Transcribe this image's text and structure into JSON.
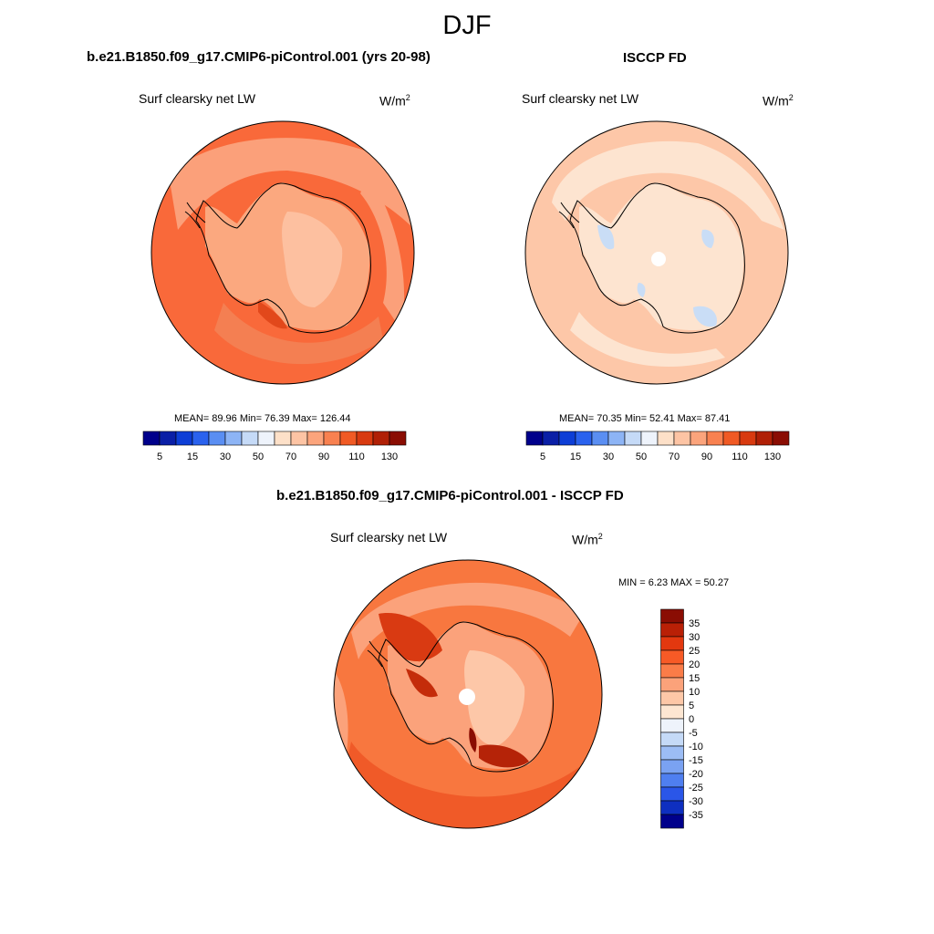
{
  "figure": {
    "title": "DJF"
  },
  "panels": [
    {
      "title": "b.e21.B1850.f09_g17.CMIP6-piControl.001 (yrs 20-98)",
      "subtitle": "Surf clearsky net LW",
      "units_base": "W/m",
      "units_exp": "2",
      "stats": "MEAN=  89.96  Min=  76.39  Max= 126.44"
    },
    {
      "title": "ISCCP FD",
      "subtitle": "Surf clearsky net LW",
      "units_base": "W/m",
      "units_exp": "2",
      "stats": "MEAN=  70.35  Min=  52.41  Max=  87.41"
    },
    {
      "title": "b.e21.B1850.f09_g17.CMIP6-piControl.001 - ISCCP FD",
      "subtitle": "Surf clearsky net LW",
      "units_base": "W/m",
      "units_exp": "2",
      "stats": "MIN =   6.23 MAX =  50.27"
    }
  ],
  "colorbars": {
    "absolute": {
      "ticks": [
        "5",
        "15",
        "30",
        "50",
        "70",
        "90",
        "110",
        "130"
      ],
      "colors": [
        "#00008b",
        "#0a1fa6",
        "#0d3ed6",
        "#2a62ee",
        "#5a8ef2",
        "#8db4f5",
        "#c5daf7",
        "#eef3fb",
        "#fde0c8",
        "#fdc4a4",
        "#fba47c",
        "#f88150",
        "#f05a24",
        "#d83a10",
        "#b02006",
        "#8a0d03"
      ]
    },
    "difference": {
      "ticks": [
        "35",
        "30",
        "25",
        "20",
        "15",
        "10",
        "5",
        "0",
        "-5",
        "-10",
        "-15",
        "-20",
        "-25",
        "-30",
        "-35"
      ],
      "colors": [
        "#8a0d03",
        "#b92006",
        "#e3380f",
        "#f75a26",
        "#fa7c48",
        "#fba27a",
        "#fdc7a7",
        "#fde6d2",
        "#eef3fb",
        "#c5daf7",
        "#9cbdf5",
        "#7aa2f2",
        "#4f7ff0",
        "#2a56e8",
        "#0e2fc0",
        "#00008b"
      ]
    }
  },
  "chart_data": [
    {
      "type": "heatmap",
      "projection": "south-polar-stereographic",
      "title": "b.e21.B1850.f09_g17.CMIP6-piControl.001 (yrs 20-98)",
      "variable": "Surf clearsky net LW",
      "units": "W/m2",
      "season": "DJF",
      "mean": 89.96,
      "min": 76.39,
      "max": 126.44,
      "contour_levels": [
        5,
        10,
        15,
        20,
        30,
        40,
        50,
        60,
        70,
        80,
        90,
        100,
        110,
        120,
        130
      ]
    },
    {
      "type": "heatmap",
      "projection": "south-polar-stereographic",
      "title": "ISCCP FD",
      "variable": "Surf clearsky net LW",
      "units": "W/m2",
      "season": "DJF",
      "mean": 70.35,
      "min": 52.41,
      "max": 87.41,
      "contour_levels": [
        5,
        10,
        15,
        20,
        30,
        40,
        50,
        60,
        70,
        80,
        90,
        100,
        110,
        120,
        130
      ]
    },
    {
      "type": "heatmap",
      "projection": "south-polar-stereographic",
      "title": "b.e21.B1850.f09_g17.CMIP6-piControl.001 - ISCCP FD",
      "variable": "Surf clearsky net LW",
      "units": "W/m2",
      "season": "DJF",
      "min": 6.23,
      "max": 50.27,
      "contour_levels": [
        -35,
        -30,
        -25,
        -20,
        -15,
        -10,
        -5,
        0,
        5,
        10,
        15,
        20,
        25,
        30,
        35
      ]
    }
  ]
}
